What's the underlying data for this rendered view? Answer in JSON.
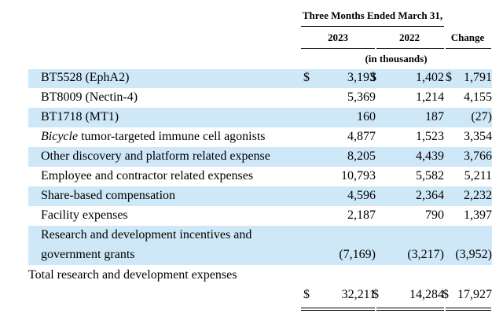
{
  "header": {
    "period": "Three Months Ended March 31,",
    "col_2023": "2023",
    "col_2022": "2022",
    "col_change": "Change",
    "units": "(in thousands)"
  },
  "rows": [
    {
      "label": "BT5528 (EphA2)",
      "label_italic": "",
      "v2023": "3,193",
      "v2022": "1,402",
      "change": "1,791",
      "dollar": "$"
    },
    {
      "label": "BT8009 (Nectin-4)",
      "label_italic": "",
      "v2023": "5,369",
      "v2022": "1,214",
      "change": "4,155"
    },
    {
      "label": "BT1718 (MT1)",
      "label_italic": "",
      "v2023": "160",
      "v2022": "187",
      "change": "(27)"
    },
    {
      "label": " tumor-targeted immune cell agonists",
      "label_italic": "Bicycle",
      "v2023": "4,877",
      "v2022": "1,523",
      "change": "3,354"
    },
    {
      "label": "Other discovery and platform related expense",
      "label_italic": "",
      "v2023": "8,205",
      "v2022": "4,439",
      "change": "3,766"
    },
    {
      "label": "Employee and contractor related expenses",
      "label_italic": "",
      "v2023": "10,793",
      "v2022": "5,582",
      "change": "5,211"
    },
    {
      "label": "Share-based compensation",
      "label_italic": "",
      "v2023": "4,596",
      "v2022": "2,364",
      "change": "2,232"
    },
    {
      "label": "Facility expenses",
      "label_italic": "",
      "v2023": "2,187",
      "v2022": "790",
      "change": "1,397"
    },
    {
      "label": "Research and development incentives and",
      "label2": "government grants",
      "v2023": "(7,169)",
      "v2022": "(3,217)",
      "change": "(3,952)"
    }
  ],
  "total": {
    "label": "Total research and development expenses",
    "dollar": "$",
    "v2023": "32,211",
    "v2022": "14,284",
    "change": "17,927"
  }
}
